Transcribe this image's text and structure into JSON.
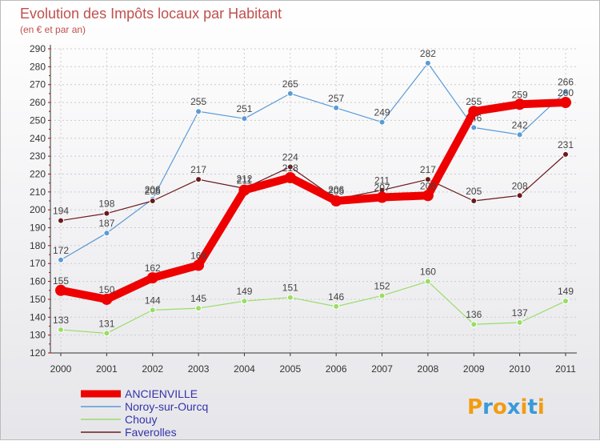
{
  "chart_data": {
    "type": "line",
    "title": "Evolution des Impôts locaux par Habitant",
    "subtitle": "(en € et par an)",
    "xlabel": "",
    "ylabel": "",
    "x": [
      "2000",
      "2001",
      "2002",
      "2003",
      "2004",
      "2005",
      "2006",
      "2007",
      "2008",
      "2009",
      "2010",
      "2011"
    ],
    "ylim": [
      120,
      290
    ],
    "yticks": [
      120,
      130,
      140,
      150,
      160,
      170,
      180,
      190,
      200,
      210,
      220,
      230,
      240,
      250,
      260,
      270,
      280,
      290
    ],
    "grid": true,
    "legend_position": "bottom-left",
    "series": [
      {
        "name": "ANCIENVILLE",
        "color": "#ee0000",
        "values": [
          155,
          150,
          162,
          169,
          211,
          218,
          205,
          207,
          208,
          255,
          259,
          260
        ]
      },
      {
        "name": "Noroy-sur-Ourcq",
        "color": "#5a9bd5",
        "values": [
          172,
          187,
          206,
          255,
          251,
          265,
          257,
          249,
          282,
          246,
          242,
          266
        ]
      },
      {
        "name": "Chouy",
        "color": "#99dd66",
        "values": [
          133,
          131,
          144,
          145,
          149,
          151,
          146,
          152,
          160,
          136,
          137,
          149
        ]
      },
      {
        "name": "Faverolles",
        "color": "#6b1a1a",
        "values": [
          194,
          198,
          205,
          217,
          212,
          224,
          206,
          211,
          217,
          205,
          208,
          231
        ]
      }
    ]
  },
  "logo": {
    "text": "Proxiti",
    "letter_colors": [
      "#f39c12",
      "#3a9ad9",
      "#f39c12",
      "#3a9ad9",
      "#f39c12",
      "#3a9ad9",
      "#f39c12"
    ]
  },
  "colors": {
    "title": "#c0504d",
    "axis": "#333333",
    "grid": "#cccccc",
    "label": "#444444",
    "legend_text": "#3333aa"
  }
}
